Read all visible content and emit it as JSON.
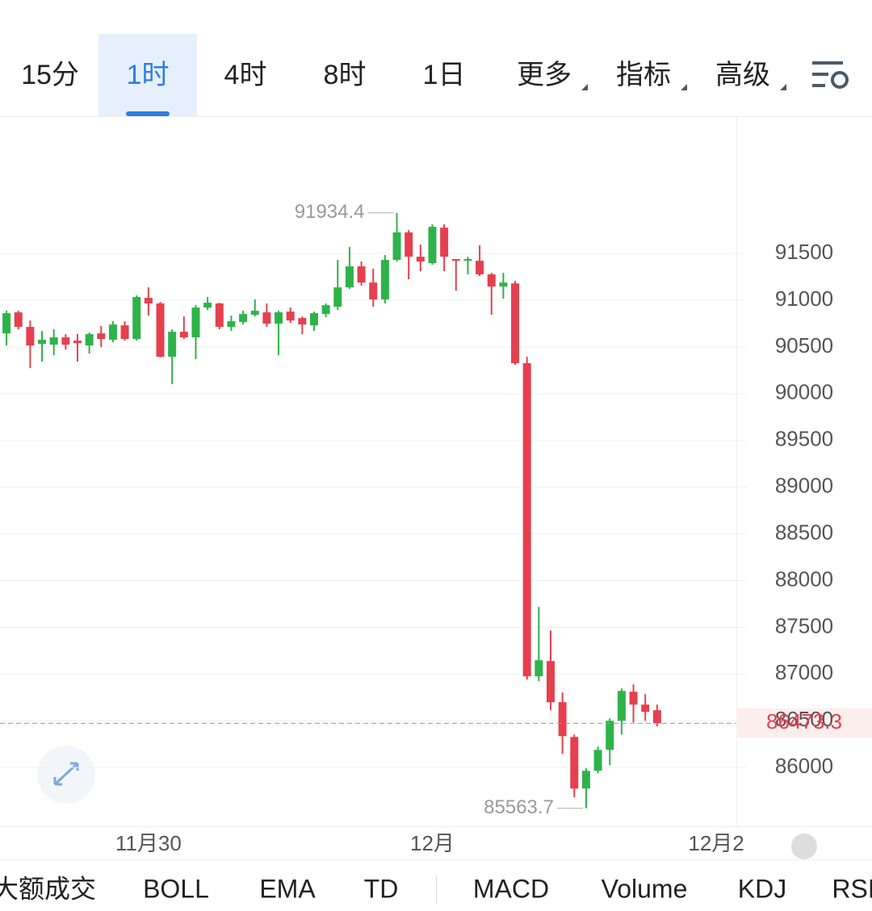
{
  "ui": {
    "top_tabs": [
      "15分",
      "1时",
      "4时",
      "8时",
      "1日",
      "更多",
      "指标",
      "高级"
    ],
    "selected_tab": 1,
    "indicator_tabs": [
      "大额成交",
      "BOLL",
      "EMA",
      "TD",
      "MACD",
      "Volume",
      "KDJ",
      "RSI"
    ]
  },
  "chart_data": {
    "type": "candlestick",
    "up_color": "#2eb34a",
    "down_color": "#e5404f",
    "grid": true,
    "ylim": [
      85380,
      92960
    ],
    "yticks": [
      86000,
      86500,
      87000,
      87500,
      88000,
      88500,
      89000,
      89500,
      90000,
      90500,
      91000,
      91500
    ],
    "xlim": [
      -0.55,
      61.7
    ],
    "xticks": [
      {
        "value": 12,
        "label": "11月30"
      },
      {
        "value": 36,
        "label": "12月"
      },
      {
        "value": 60,
        "label": "12月2"
      }
    ],
    "open": [
      90645,
      90870,
      90714,
      90533,
      90524,
      90602,
      90567,
      90516,
      90645,
      90576,
      90731,
      90585,
      91025,
      90965,
      90395,
      90662,
      90602,
      90921,
      90965,
      90714,
      90766,
      90844,
      90870,
      90749,
      90878,
      90809,
      90731,
      90852,
      90930,
      91137,
      91362,
      91189,
      91008,
      91431,
      91725,
      91465,
      91396,
      91776,
      91440,
      91422,
      91422,
      91276,
      91146,
      91180,
      90326,
      86976,
      87139,
      86699,
      86327,
      85775,
      85965,
      86189,
      86500,
      86811,
      86673,
      86613
    ],
    "high": [
      90887,
      90887,
      90783,
      90671,
      90688,
      90637,
      90637,
      90654,
      90723,
      90775,
      90775,
      91051,
      91137,
      90982,
      90688,
      90826,
      90947,
      91034,
      90973,
      90835,
      90887,
      91008,
      90965,
      90887,
      90921,
      90826,
      90878,
      90965,
      91431,
      91569,
      91414,
      91336,
      91483,
      91934.4,
      91750,
      91595,
      91811,
      91811,
      91440,
      91465,
      91586,
      91293,
      91293,
      91206,
      90395,
      87718,
      87467,
      86803,
      86353,
      85991,
      86224,
      86526,
      86846,
      86889,
      86785,
      86673
    ],
    "low": [
      90515,
      90688,
      90274,
      90343,
      90412,
      90472,
      90343,
      90429,
      90498,
      90550,
      90567,
      90567,
      90835,
      90386,
      90101,
      90585,
      90369,
      90895,
      90688,
      90671,
      90740,
      90826,
      90714,
      90412,
      90757,
      90637,
      90671,
      90818,
      90895,
      91120,
      91155,
      90930,
      90965,
      91414,
      91224,
      91310,
      91379,
      91310,
      91103,
      91276,
      91258,
      90844,
      91017,
      90308,
      86941,
      86924,
      86613,
      86146,
      85680,
      85563.7,
      85939,
      86025,
      86353,
      86483,
      86500,
      86440
    ],
    "close": [
      90861,
      90714,
      90516,
      90576,
      90602,
      90524,
      90541,
      90637,
      90585,
      90740,
      90585,
      91034,
      90965,
      90395,
      90662,
      90602,
      90921,
      90973,
      90714,
      90775,
      90852,
      90887,
      90749,
      90870,
      90783,
      90740,
      90861,
      90947,
      91137,
      91362,
      91189,
      91008,
      91431,
      91725,
      91465,
      91414,
      91785,
      91465,
      91422,
      91440,
      91276,
      91146,
      91189,
      90326,
      86976,
      87148,
      86699,
      86336,
      85775,
      85965,
      86189,
      86500,
      86820,
      86673,
      86595,
      86473.3
    ]
  }
}
